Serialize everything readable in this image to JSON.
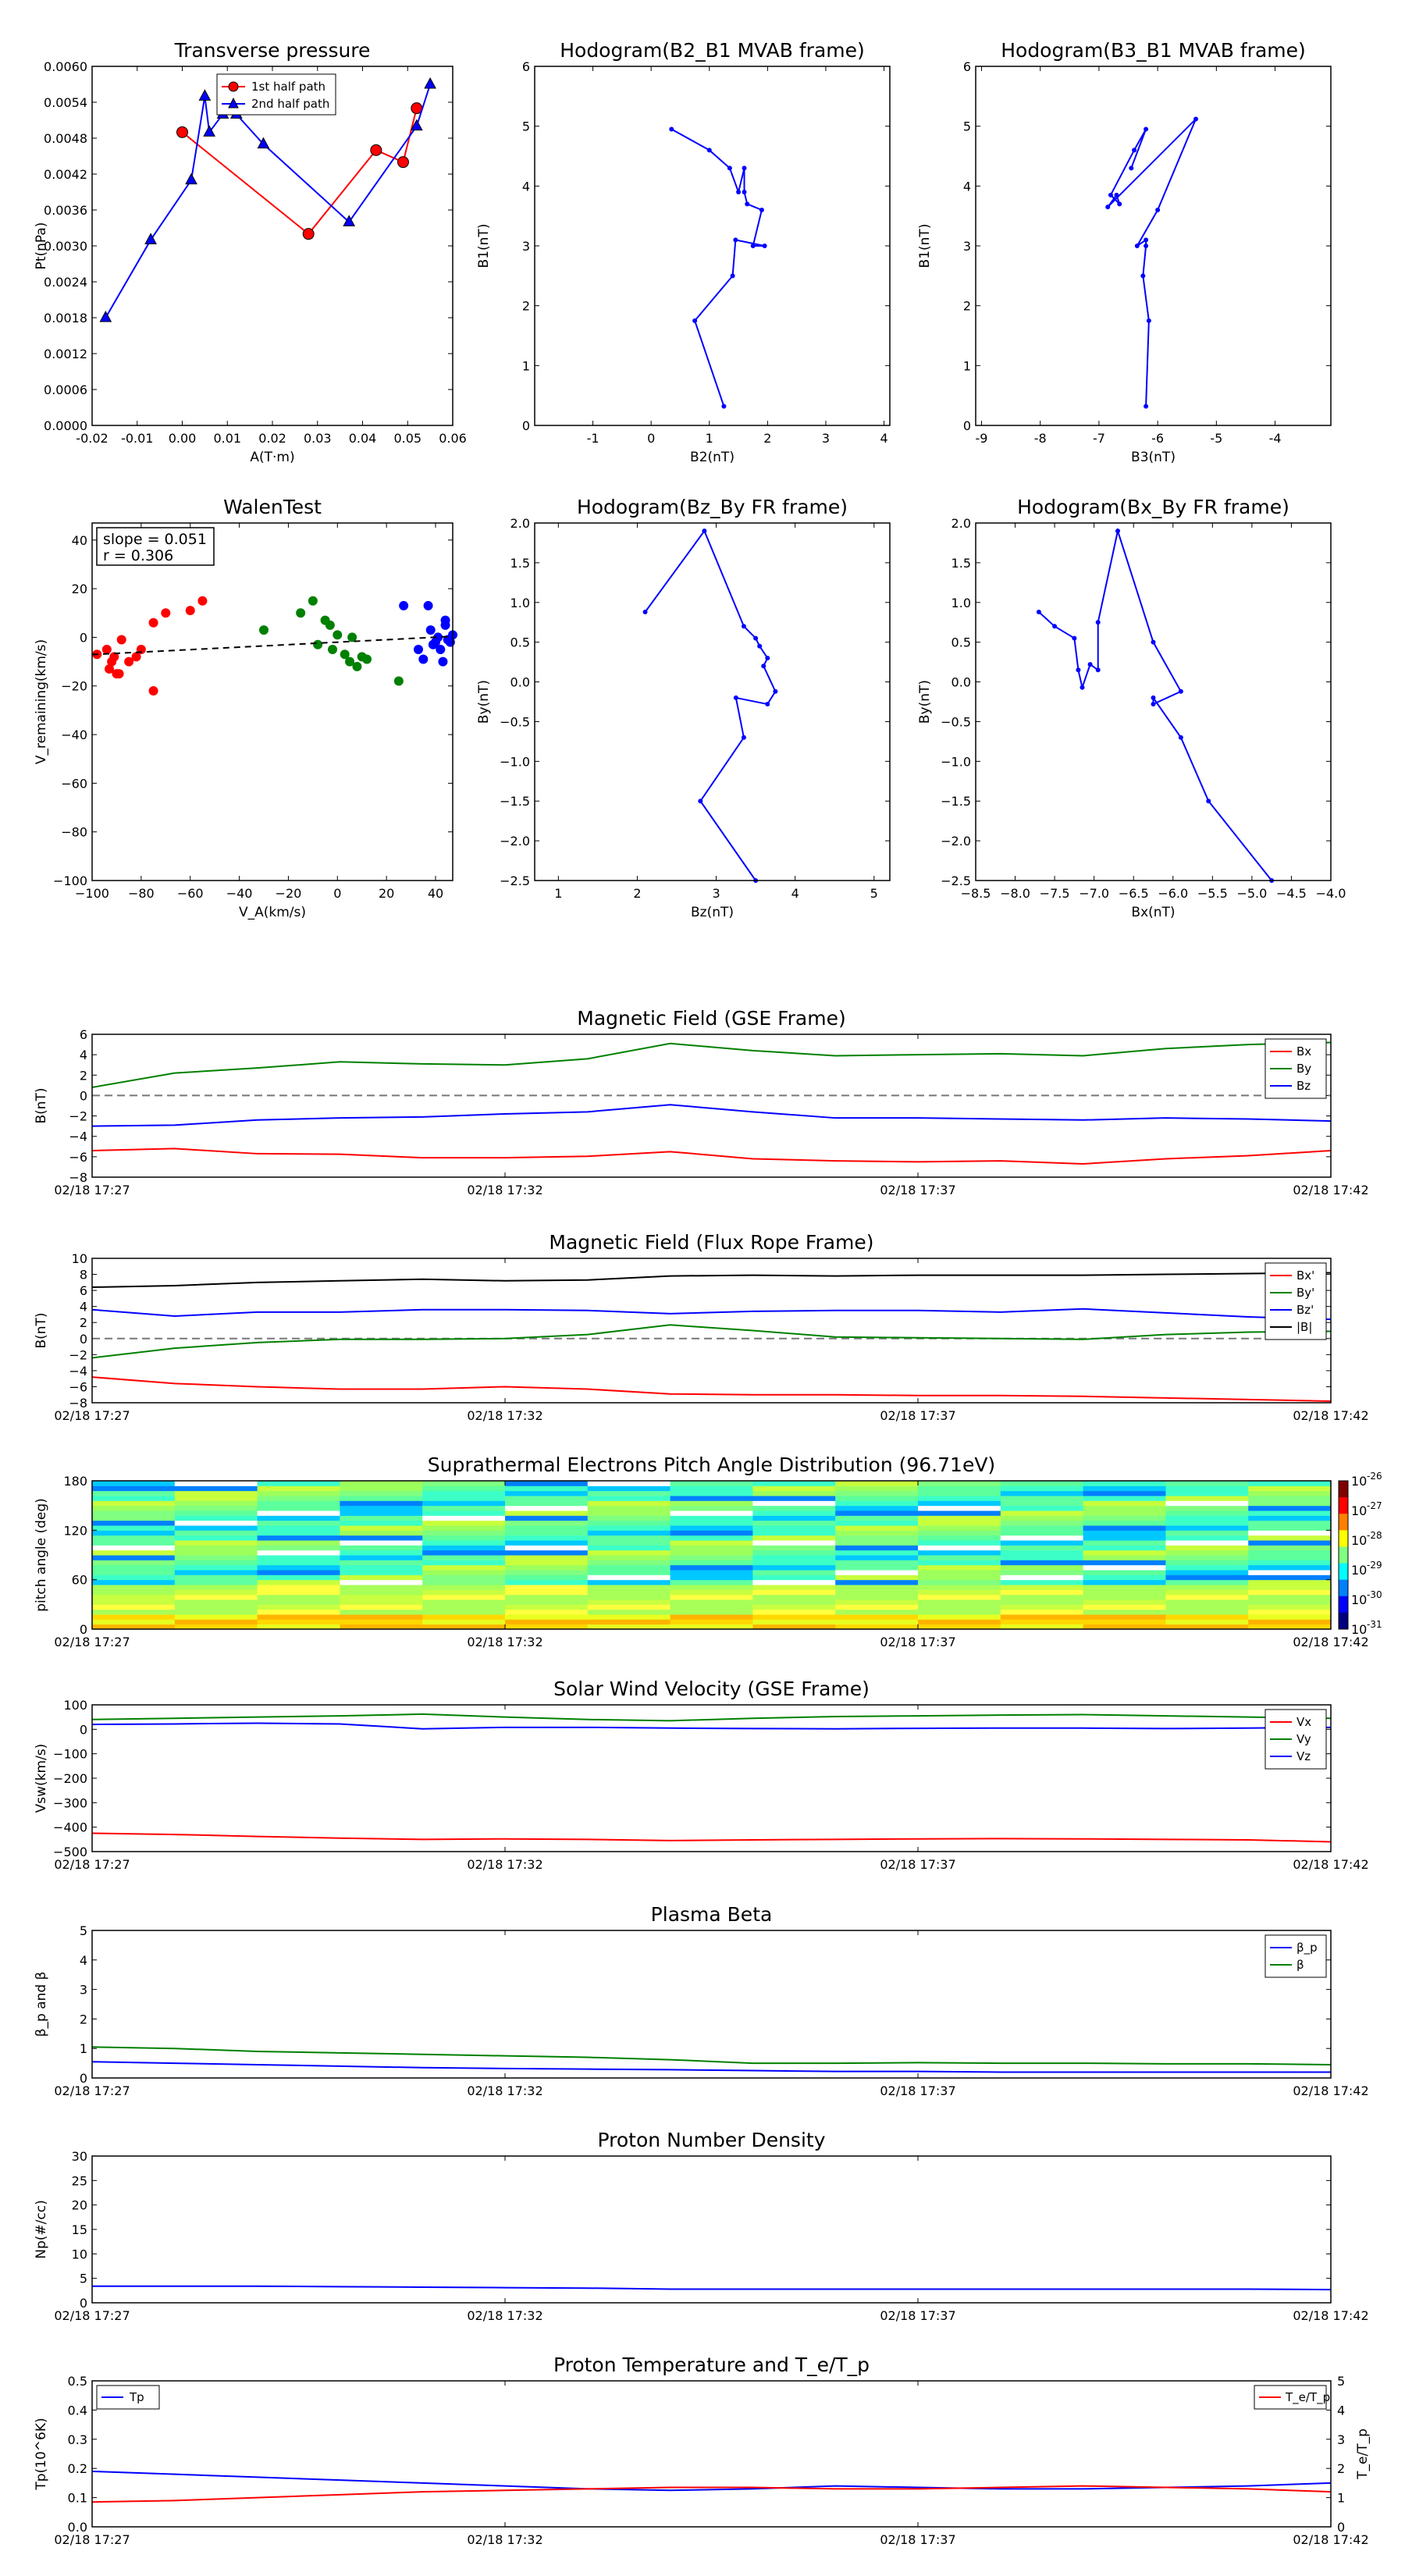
{
  "colors": {
    "red": "#ff0000",
    "green": "#008000",
    "blue": "#0000ff",
    "black": "#000000",
    "dash": "#777777"
  },
  "chart_data": [
    {
      "id": "tp",
      "type": "line",
      "title": "Transverse pressure",
      "xlabel": "A(T·m)",
      "ylabel": "Pt(nPa)",
      "xlim": [
        -0.02,
        0.06
      ],
      "ylim": [
        0,
        0.006
      ],
      "xticks": [
        "-0.02",
        "-0.01",
        "0.00",
        "0.01",
        "0.02",
        "0.03",
        "0.04",
        "0.05",
        "0.06"
      ],
      "yticks": [
        "0.0000",
        "0.0006",
        "0.0012",
        "0.0018",
        "0.0024",
        "0.0030",
        "0.0036",
        "0.0042",
        "0.0048",
        "0.0054",
        "0.0060"
      ],
      "legend": "top-center",
      "series": [
        {
          "name": "1st half path",
          "color": "red",
          "marker": "circle",
          "x": [
            0.0,
            0.028,
            0.043,
            0.049,
            0.052
          ],
          "y": [
            0.0049,
            0.0032,
            0.0046,
            0.0044,
            0.0053
          ]
        },
        {
          "name": "2nd half path",
          "color": "blue",
          "marker": "triangle",
          "x": [
            -0.017,
            -0.007,
            0.002,
            0.005,
            0.006,
            0.009,
            0.012,
            0.018,
            0.037,
            0.052,
            0.055
          ],
          "y": [
            0.0018,
            0.0031,
            0.0041,
            0.0055,
            0.0049,
            0.0052,
            0.0052,
            0.0047,
            0.0034,
            0.005,
            0.0057
          ]
        }
      ]
    },
    {
      "id": "h1",
      "type": "line",
      "title": "Hodogram(B2_B1 MVAB frame)",
      "xlabel": "B2(nT)",
      "ylabel": "B1(nT)",
      "xlim": [
        -2,
        4.1
      ],
      "ylim": [
        0,
        6
      ],
      "xticks": [
        "-1",
        "0",
        "1",
        "2",
        "3",
        "4"
      ],
      "yticks": [
        "0",
        "1",
        "2",
        "3",
        "4",
        "5",
        "6"
      ],
      "series": [
        {
          "color": "blue",
          "x": [
            1.25,
            0.75,
            1.4,
            1.45,
            1.95,
            1.75,
            1.9,
            1.65,
            1.6,
            1.6,
            1.5,
            1.35,
            1.0,
            0.35
          ],
          "y": [
            0.32,
            1.75,
            2.5,
            3.1,
            3.0,
            3.0,
            3.6,
            3.7,
            3.9,
            4.3,
            3.9,
            4.3,
            4.6,
            4.95
          ]
        }
      ]
    },
    {
      "id": "h2",
      "type": "line",
      "title": "Hodogram(B3_B1 MVAB frame)",
      "xlabel": "B3(nT)",
      "ylabel": "B1(nT)",
      "xlim": [
        -9.1,
        -3.05
      ],
      "ylim": [
        0,
        6
      ],
      "xticks": [
        "-9",
        "-8",
        "-7",
        "-6",
        "-5",
        "-4"
      ],
      "yticks": [
        "0",
        "1",
        "2",
        "3",
        "4",
        "5",
        "6"
      ],
      "series": [
        {
          "color": "blue",
          "x": [
            -6.2,
            -6.15,
            -6.25,
            -6.2,
            -6.2,
            -6.35,
            -6.0,
            -5.35,
            -6.85,
            -6.7,
            -6.65,
            -6.8,
            -6.4,
            -6.2,
            -6.45
          ],
          "y": [
            0.32,
            1.75,
            2.5,
            3.0,
            3.1,
            3.0,
            3.6,
            5.12,
            3.65,
            3.85,
            3.7,
            3.85,
            4.6,
            4.95,
            4.3
          ]
        }
      ]
    },
    {
      "id": "walen",
      "type": "scatter",
      "title": "WalenTest",
      "xlabel": "V_A(km/s)",
      "ylabel": "V_remaining(km/s)",
      "xlim": [
        -100,
        47
      ],
      "ylim": [
        -100,
        47
      ],
      "xticks": [
        "−100",
        "−80",
        "−60",
        "−40",
        "−20",
        "0",
        "20",
        "40"
      ],
      "yticks": [
        "−100",
        "−80",
        "−60",
        "−40",
        "−20",
        "0",
        "20",
        "40"
      ],
      "annotation": [
        "slope = 0.051",
        "r = 0.306"
      ],
      "fit": {
        "slope": 0.051,
        "intercept": -2
      },
      "series": [
        {
          "color": "red",
          "x": [
            -98,
            -94,
            -92,
            -90,
            -93,
            -89,
            -91,
            -88,
            -80,
            -82,
            -85,
            -75,
            -70,
            -75,
            -60,
            -55
          ],
          "y": [
            -7,
            -5,
            -10,
            -15,
            -13,
            -15,
            -8,
            -1,
            -5,
            -8,
            -10,
            -22,
            10,
            6,
            11,
            15
          ],
          "labelled": false
        },
        {
          "color": "green",
          "x": [
            -30,
            -15,
            -10,
            -8,
            -5,
            -3,
            0,
            3,
            5,
            8,
            10,
            -2,
            6,
            12,
            25
          ],
          "y": [
            3,
            10,
            15,
            -3,
            7,
            5,
            1,
            -7,
            -10,
            -12,
            -8,
            -5,
            0,
            -9,
            -18
          ],
          "labelled": false
        },
        {
          "color": "blue",
          "x": [
            27,
            33,
            37,
            38,
            40,
            42,
            43,
            44,
            45,
            46,
            41,
            39,
            35,
            44,
            47
          ],
          "y": [
            13,
            -5,
            13,
            3,
            -2,
            -5,
            -10,
            7,
            -1,
            -2,
            0,
            -3,
            -9,
            5,
            1
          ],
          "labelled": false
        }
      ]
    },
    {
      "id": "h3",
      "type": "line",
      "title": "Hodogram(Bz_By FR frame)",
      "xlabel": "Bz(nT)",
      "ylabel": "By(nT)",
      "xlim": [
        0.7,
        5.2
      ],
      "ylim": [
        -2.5,
        2
      ],
      "xticks": [
        "1",
        "2",
        "3",
        "4",
        "5"
      ],
      "yticks": [
        "−2.5",
        "−2.0",
        "−1.5",
        "−1.0",
        "−0.5",
        "0.0",
        "0.5",
        "1.0",
        "1.5",
        "2.0"
      ],
      "series": [
        {
          "color": "blue",
          "x": [
            3.5,
            2.8,
            3.35,
            3.25,
            3.65,
            3.75,
            3.6,
            3.65,
            3.55,
            3.5,
            3.35,
            2.85,
            2.1
          ],
          "y": [
            -2.5,
            -1.5,
            -0.7,
            -0.2,
            -0.28,
            -0.12,
            0.2,
            0.3,
            0.45,
            0.55,
            0.7,
            1.9,
            0.88
          ]
        }
      ]
    },
    {
      "id": "h4",
      "type": "line",
      "title": "Hodogram(Bx_By FR frame)",
      "xlabel": "Bx(nT)",
      "ylabel": "By(nT)",
      "xlim": [
        -8.5,
        -4.0
      ],
      "ylim": [
        -2.5,
        2
      ],
      "xticks": [
        "−8.5",
        "−8.0",
        "−7.5",
        "−7.0",
        "−6.5",
        "−6.0",
        "−5.5",
        "−5.0",
        "−4.5",
        "−4.0"
      ],
      "yticks": [
        "−2.5",
        "−2.0",
        "−1.5",
        "−1.0",
        "−0.5",
        "0.0",
        "0.5",
        "1.0",
        "1.5",
        "2.0"
      ],
      "series": [
        {
          "color": "blue",
          "x": [
            -4.75,
            -5.55,
            -5.9,
            -6.25,
            -6.25,
            -5.9,
            -6.25,
            -6.7,
            -6.95,
            -6.95,
            -7.05,
            -7.15,
            -7.2,
            -7.25,
            -7.5,
            -7.7
          ],
          "y": [
            -2.5,
            -1.5,
            -0.7,
            -0.2,
            -0.28,
            -0.12,
            0.5,
            1.9,
            0.75,
            0.15,
            0.22,
            -0.07,
            0.15,
            0.55,
            0.7,
            0.88
          ]
        }
      ]
    },
    {
      "id": "mf",
      "type": "line",
      "title": "Magnetic Field (GSE Frame)",
      "ylabel": "B(nT)",
      "ylim": [
        -8,
        6
      ],
      "yticks": [
        "−8",
        "−6",
        "−4",
        "−2",
        "0",
        "2",
        "4",
        "6"
      ],
      "xticks": [
        "02/18 17:27",
        "02/18 17:32",
        "02/18 17:37",
        "02/18 17:42"
      ],
      "legend": "top-right",
      "zero_line": true,
      "series": [
        {
          "name": "Bx",
          "color": "red",
          "values": [
            -5.4,
            -5.2,
            -5.7,
            -5.75,
            -6.1,
            -6.1,
            -5.95,
            -5.5,
            -6.2,
            -6.4,
            -6.5,
            -6.4,
            -6.7,
            -6.2,
            -5.9,
            -5.4
          ]
        },
        {
          "name": "By",
          "color": "green",
          "values": [
            0.8,
            2.2,
            2.7,
            3.3,
            3.1,
            3.0,
            3.6,
            5.1,
            4.4,
            3.9,
            4.0,
            4.1,
            3.9,
            4.6,
            5.0,
            5.2
          ]
        },
        {
          "name": "Bz",
          "color": "blue",
          "values": [
            -3.0,
            -2.9,
            -2.4,
            -2.2,
            -2.1,
            -1.8,
            -1.6,
            -0.9,
            -1.6,
            -2.2,
            -2.2,
            -2.3,
            -2.4,
            -2.2,
            -2.3,
            -2.5
          ]
        }
      ]
    },
    {
      "id": "mffr",
      "type": "line",
      "title": "Magnetic Field (Flux Rope Frame)",
      "ylabel": "B(nT)",
      "ylim": [
        -8,
        10
      ],
      "yticks": [
        "−8",
        "−6",
        "−4",
        "−2",
        "0",
        "2",
        "4",
        "6",
        "8",
        "10"
      ],
      "xticks": [
        "02/18 17:27",
        "02/18 17:32",
        "02/18 17:37",
        "02/18 17:42"
      ],
      "legend": "top-right",
      "zero_line": true,
      "series": [
        {
          "name": "Bx'",
          "color": "red",
          "values": [
            -4.8,
            -5.6,
            -6.0,
            -6.3,
            -6.3,
            -6.0,
            -6.3,
            -6.9,
            -7.0,
            -7.0,
            -7.1,
            -7.1,
            -7.2,
            -7.4,
            -7.6,
            -7.8
          ]
        },
        {
          "name": "By'",
          "color": "green",
          "values": [
            -2.4,
            -1.2,
            -0.5,
            -0.1,
            -0.1,
            0.0,
            0.5,
            1.7,
            1.0,
            0.2,
            0.1,
            0.0,
            -0.1,
            0.5,
            0.8,
            0.9
          ]
        },
        {
          "name": "Bz'",
          "color": "blue",
          "values": [
            3.6,
            2.8,
            3.3,
            3.3,
            3.6,
            3.6,
            3.5,
            3.1,
            3.4,
            3.5,
            3.5,
            3.3,
            3.7,
            3.2,
            2.7,
            2.4
          ]
        },
        {
          "name": "|B|",
          "color": "black",
          "values": [
            6.4,
            6.6,
            7.0,
            7.2,
            7.4,
            7.2,
            7.3,
            7.8,
            7.9,
            7.8,
            7.9,
            7.9,
            7.9,
            8.0,
            8.1,
            8.2
          ]
        }
      ]
    },
    {
      "id": "pad",
      "type": "heatmap",
      "title": "Suprathermal Electrons Pitch Angle Distribution (96.71eV)",
      "ylabel": "pitch angle (deg)",
      "ylim": [
        0,
        180
      ],
      "yticks": [
        "0",
        "60",
        "120",
        "180"
      ],
      "xticks": [
        "02/18 17:27",
        "02/18 17:32",
        "02/18 17:37",
        "02/18 17:42"
      ],
      "colorbar": {
        "ticks": [
          "10",
          "10",
          "10",
          "10",
          "10",
          "10"
        ],
        "exponents": [
          "-26",
          "-27",
          "-28",
          "-29",
          "-30",
          "-31"
        ]
      },
      "columns": 15,
      "rows": 30
    },
    {
      "id": "vsw",
      "type": "line",
      "title": "Solar Wind Velocity (GSE Frame)",
      "ylabel": "Vsw(km/s)",
      "ylim": [
        -500,
        100
      ],
      "yticks": [
        "−500",
        "−400",
        "−300",
        "−200",
        "−100",
        "0",
        "100"
      ],
      "xticks": [
        "02/18 17:27",
        "02/18 17:32",
        "02/18 17:37",
        "02/18 17:42"
      ],
      "legend": "top-right",
      "series": [
        {
          "name": "Vx",
          "color": "red",
          "values": [
            -425,
            -430,
            -438,
            -445,
            -450,
            -448,
            -450,
            -455,
            -452,
            -450,
            -448,
            -447,
            -448,
            -450,
            -452,
            -460
          ]
        },
        {
          "name": "Vy",
          "color": "green",
          "values": [
            40,
            45,
            50,
            55,
            62,
            50,
            40,
            35,
            45,
            52,
            55,
            58,
            60,
            55,
            50,
            45
          ]
        },
        {
          "name": "Vz",
          "color": "blue",
          "values": [
            20,
            22,
            25,
            22,
            2,
            8,
            8,
            5,
            3,
            2,
            4,
            5,
            5,
            3,
            5,
            8
          ]
        }
      ]
    },
    {
      "id": "beta",
      "type": "line",
      "title": "Plasma Beta",
      "ylabel": "β_p and β",
      "ylim": [
        0,
        5
      ],
      "yticks": [
        "0",
        "1",
        "2",
        "3",
        "4",
        "5"
      ],
      "xticks": [
        "02/18 17:27",
        "02/18 17:32",
        "02/18 17:37",
        "02/18 17:42"
      ],
      "legend": "top-right",
      "series": [
        {
          "name": "β_p",
          "color": "blue",
          "values": [
            0.55,
            0.5,
            0.45,
            0.4,
            0.35,
            0.32,
            0.3,
            0.28,
            0.25,
            0.22,
            0.22,
            0.2,
            0.2,
            0.2,
            0.2,
            0.2
          ]
        },
        {
          "name": "β",
          "color": "green",
          "values": [
            1.05,
            1.0,
            0.9,
            0.85,
            0.8,
            0.75,
            0.7,
            0.62,
            0.5,
            0.5,
            0.52,
            0.5,
            0.5,
            0.48,
            0.48,
            0.45
          ]
        }
      ]
    },
    {
      "id": "np",
      "type": "line",
      "title": "Proton Number Density",
      "ylabel": "Np(#/cc)",
      "ylim": [
        0,
        30
      ],
      "yticks": [
        "0",
        "5",
        "10",
        "15",
        "20",
        "25",
        "30"
      ],
      "xticks": [
        "02/18 17:27",
        "02/18 17:32",
        "02/18 17:37",
        "02/18 17:42"
      ],
      "series": [
        {
          "color": "blue",
          "values": [
            3.4,
            3.4,
            3.4,
            3.3,
            3.2,
            3.1,
            3.0,
            2.8,
            2.8,
            2.8,
            2.8,
            2.8,
            2.8,
            2.8,
            2.8,
            2.7
          ]
        }
      ]
    },
    {
      "id": "tpr",
      "type": "line",
      "title": "Proton Temperature and T_e/T_p",
      "ylabel": "Tp(10^6K)",
      "y2label": "T_e/T_p",
      "ylim": [
        0,
        0.5
      ],
      "y2lim": [
        0,
        5
      ],
      "yticks": [
        "0.0",
        "0.1",
        "0.2",
        "0.3",
        "0.4",
        "0.5"
      ],
      "y2ticks": [
        "0",
        "1",
        "2",
        "3",
        "4",
        "5"
      ],
      "xticks": [
        "02/18 17:27",
        "02/18 17:32",
        "02/18 17:37",
        "02/18 17:42"
      ],
      "legend_left": "Tp",
      "legend_right": "T_e/T_p",
      "series": [
        {
          "name": "Tp",
          "axis": "left",
          "color": "blue",
          "values": [
            0.19,
            0.18,
            0.17,
            0.16,
            0.15,
            0.14,
            0.13,
            0.125,
            0.13,
            0.14,
            0.135,
            0.13,
            0.13,
            0.135,
            0.14,
            0.15
          ]
        },
        {
          "name": "T_e/T_p",
          "axis": "right",
          "color": "red",
          "values": [
            0.85,
            0.9,
            1.0,
            1.1,
            1.2,
            1.25,
            1.3,
            1.35,
            1.35,
            1.3,
            1.3,
            1.35,
            1.4,
            1.35,
            1.3,
            1.2
          ]
        }
      ]
    }
  ]
}
